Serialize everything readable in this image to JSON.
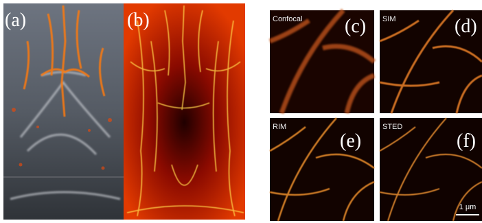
{
  "panels": [
    {
      "label": "(a)"
    },
    {
      "label": "(b)"
    },
    {
      "label": "(c)",
      "name": "Confocal"
    },
    {
      "label": "(d)",
      "name": "SIM"
    },
    {
      "label": "(e)",
      "name": "RIM"
    },
    {
      "label": "(f)",
      "name": "STED"
    }
  ],
  "scale_bar": "1 μm"
}
